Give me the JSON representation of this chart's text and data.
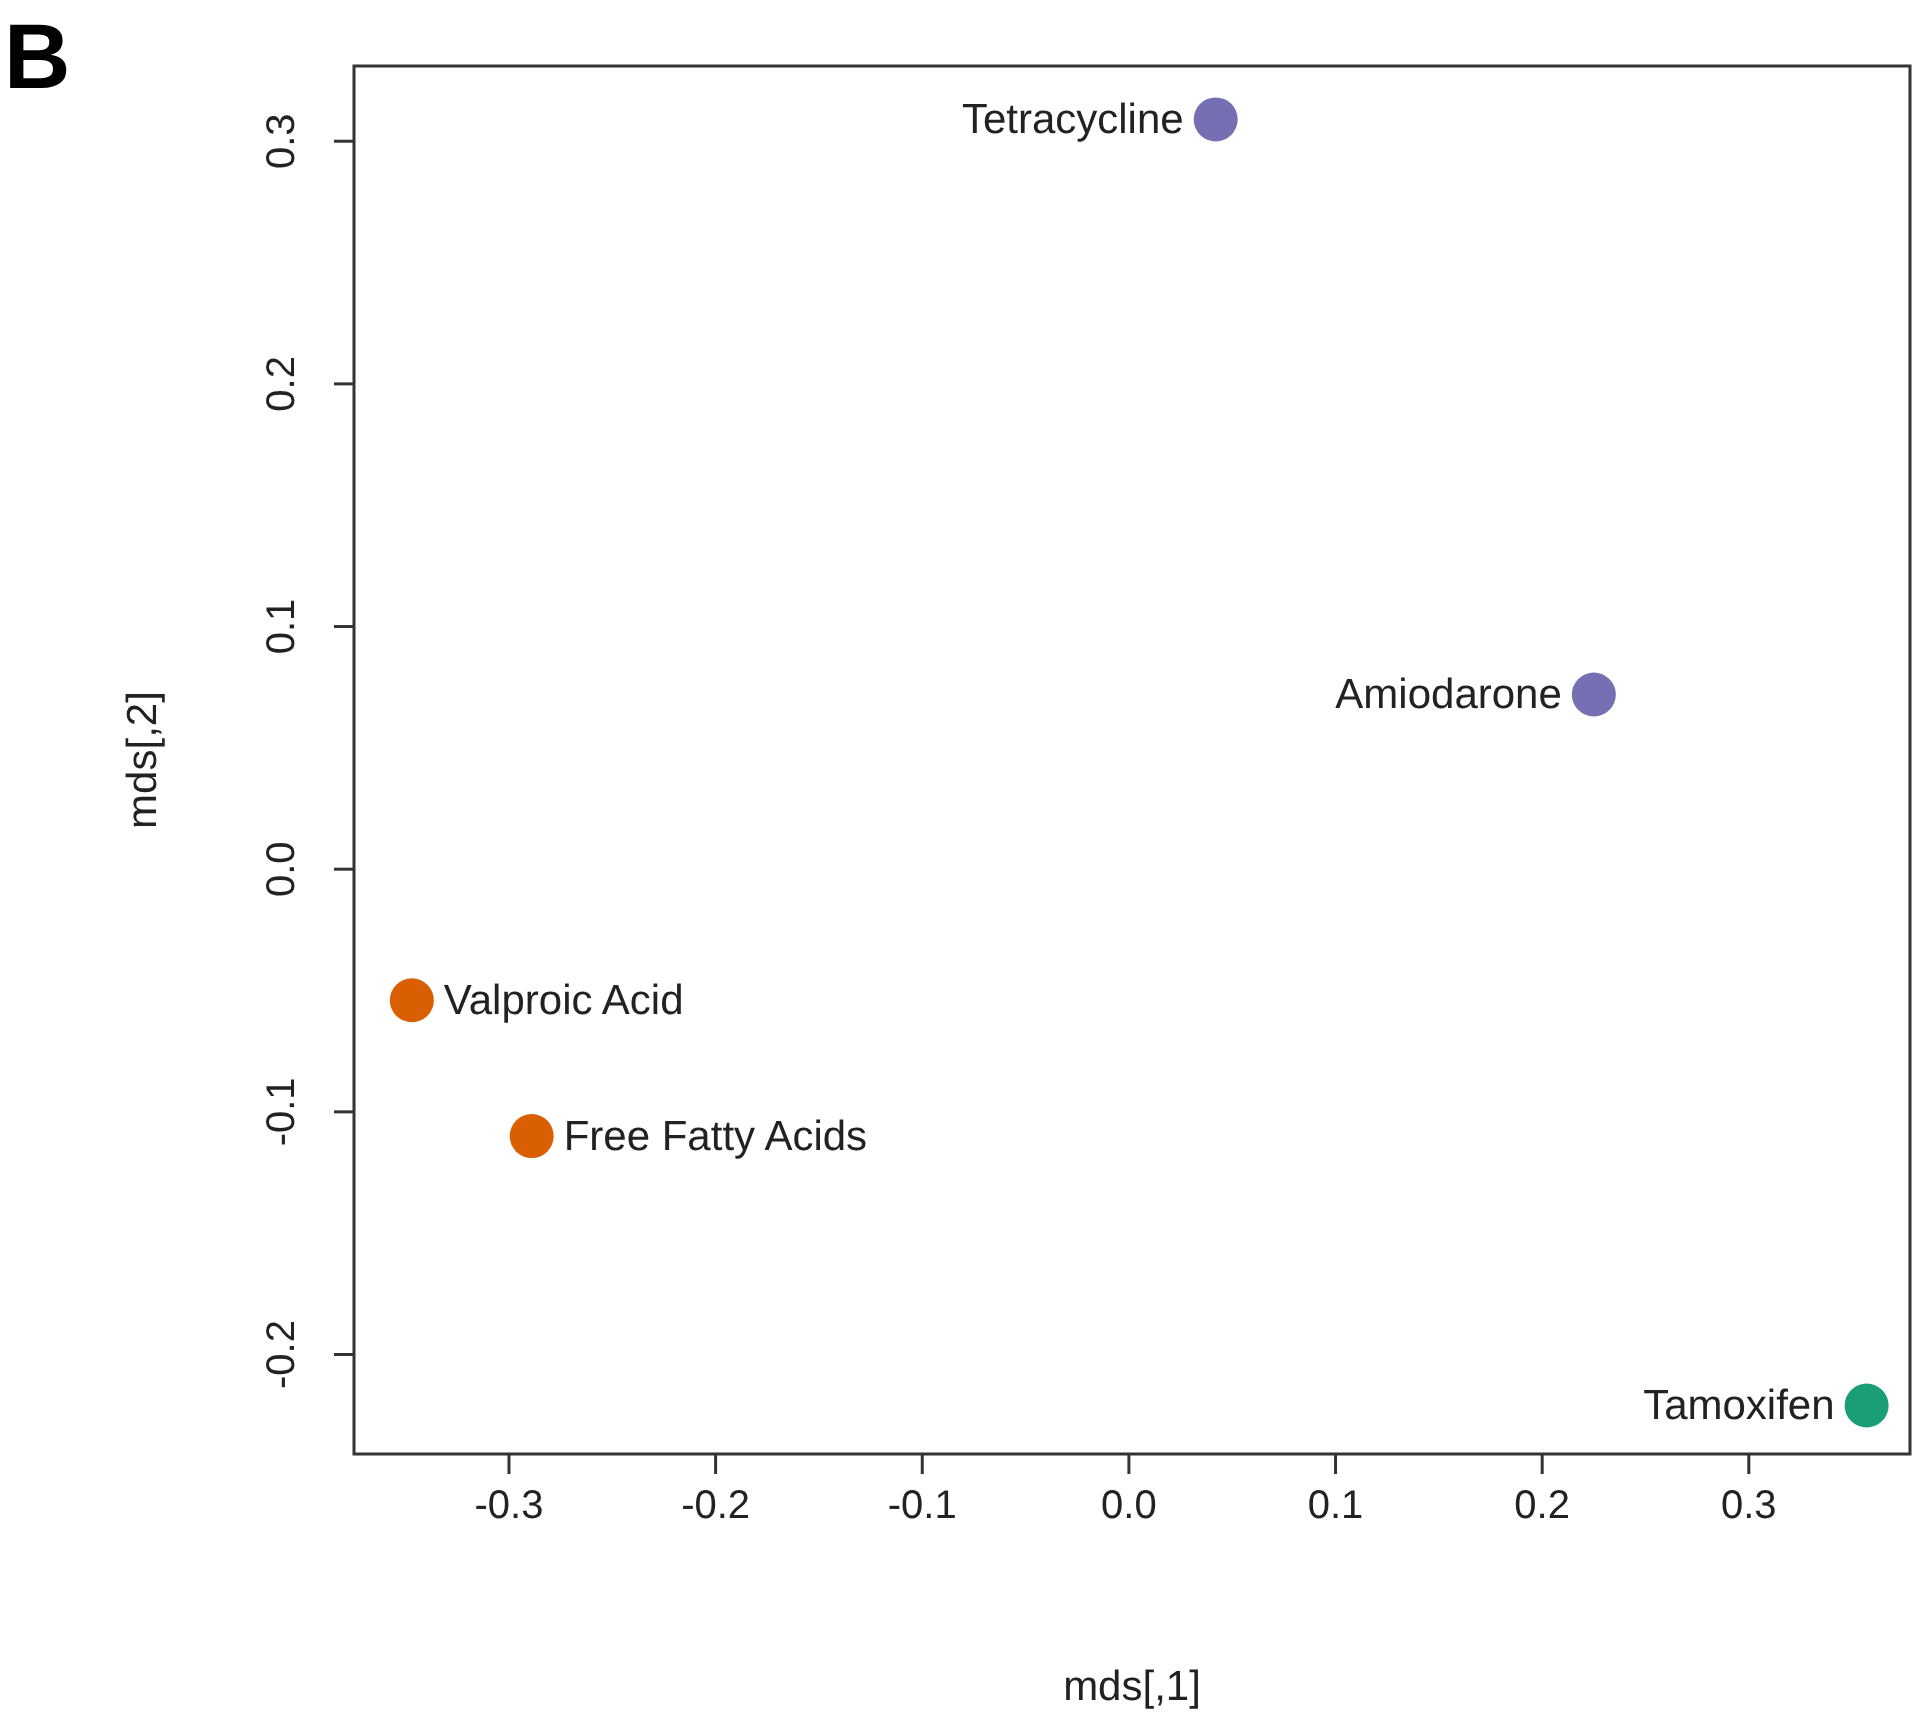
{
  "chart_data": {
    "type": "scatter",
    "xlabel": "mds[,1]",
    "ylabel": "mds[,2]",
    "x": [
      0.042,
      0.225,
      -0.347,
      -0.289,
      0.357
    ],
    "values": [
      0.309,
      0.072,
      -0.054,
      -0.11,
      -0.221
    ],
    "colors": [
      "#7570b3",
      "#7570b3",
      "#d95f02",
      "#d95f02",
      "#1b9e77"
    ],
    "marker": "circle",
    "grid": false,
    "xlim": [
      -0.375,
      0.378
    ],
    "ylim": [
      -0.241,
      0.331
    ],
    "xticks": [
      {
        "value": -0.3,
        "label": "-0.3"
      },
      {
        "value": -0.2,
        "label": "-0.2"
      },
      {
        "value": -0.1,
        "label": "-0.1"
      },
      {
        "value": 0,
        "label": "0.0"
      },
      {
        "value": 0.1,
        "label": "0.1"
      },
      {
        "value": 0.2,
        "label": "0.2"
      },
      {
        "value": 0.3,
        "label": "0.3"
      }
    ],
    "yticks": [
      {
        "value": -0.2,
        "label": "-0.2"
      },
      {
        "value": -0.1,
        "label": "-0.1"
      },
      {
        "value": 0,
        "label": "0.0"
      },
      {
        "value": 0.1,
        "label": "0.1"
      },
      {
        "value": 0.2,
        "label": "0.2"
      },
      {
        "value": 0.3,
        "label": "0.3"
      }
    ],
    "annotations": [
      "B",
      {
        "text": "Tetracycline",
        "x": 0.042,
        "y": 0.309
      },
      {
        "text": "Amiodarone",
        "x": 0.225,
        "y": 0.072
      },
      {
        "text": "Valproic Acid",
        "x": -0.347,
        "y": -0.054
      },
      {
        "text": "Free Fatty Acids",
        "x": -0.289,
        "y": -0.11
      },
      {
        "text": "Tamoxifen",
        "x": 0.357,
        "y": -0.221
      }
    ]
  }
}
